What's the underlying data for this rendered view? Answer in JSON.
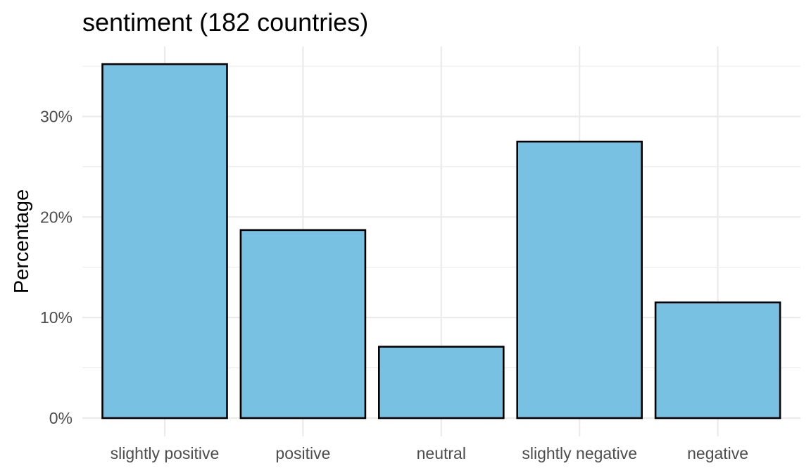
{
  "chart_data": {
    "type": "bar",
    "title": "sentiment (182 countries)",
    "xlabel": "",
    "ylabel": "Percentage",
    "categories": [
      "slightly positive",
      "positive",
      "neutral",
      "slightly negative",
      "negative"
    ],
    "values": [
      35.2,
      18.7,
      7.1,
      27.5,
      11.5
    ],
    "yticks": [
      0,
      10,
      20,
      30
    ],
    "ytick_labels": [
      "0%",
      "10%",
      "20%",
      "30%"
    ],
    "ylim": [
      0,
      36.96
    ],
    "grid": true,
    "legend": "none",
    "colors": {
      "bar_fill": "#78c1e3",
      "bar_stroke": "#000000",
      "grid": "#ebebeb",
      "tick_text": "#4d4d4d",
      "title_text": "#000000"
    }
  }
}
